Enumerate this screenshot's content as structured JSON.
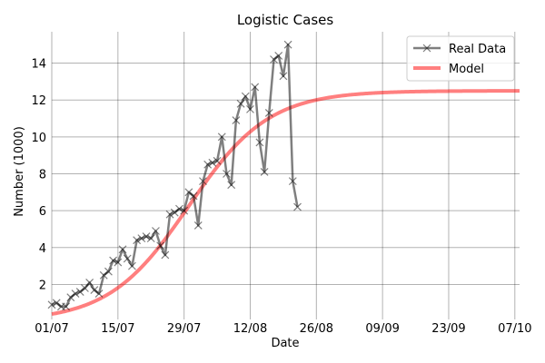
{
  "chart_data": {
    "type": "line",
    "title": "Logistic Cases",
    "xlabel": "Date",
    "ylabel": "Number (1000)",
    "x_tick_labels": [
      "01/07",
      "15/07",
      "29/07",
      "12/08",
      "26/08",
      "09/09",
      "23/09",
      "07/10"
    ],
    "x_tick_dates": [
      "2020-07-01",
      "2020-07-15",
      "2020-07-29",
      "2020-08-12",
      "2020-08-26",
      "2020-09-09",
      "2020-09-23",
      "2020-10-07"
    ],
    "xlim": [
      "2020-07-01",
      "2020-10-08"
    ],
    "y_ticks": [
      2,
      4,
      6,
      8,
      10,
      12,
      14
    ],
    "ylim": [
      0.3,
      15.7
    ],
    "grid": true,
    "legend_position": "top-right",
    "series": [
      {
        "name": "Real Data",
        "color": "#000000",
        "opacity": 0.5,
        "marker": "x",
        "points": [
          [
            "2020-07-01",
            0.9
          ],
          [
            "2020-07-02",
            1.0
          ],
          [
            "2020-07-03",
            0.8
          ],
          [
            "2020-07-04",
            0.8
          ],
          [
            "2020-07-05",
            1.3
          ],
          [
            "2020-07-06",
            1.5
          ],
          [
            "2020-07-07",
            1.6
          ],
          [
            "2020-07-08",
            1.8
          ],
          [
            "2020-07-09",
            2.1
          ],
          [
            "2020-07-10",
            1.7
          ],
          [
            "2020-07-11",
            1.5
          ],
          [
            "2020-07-12",
            2.5
          ],
          [
            "2020-07-13",
            2.7
          ],
          [
            "2020-07-14",
            3.3
          ],
          [
            "2020-07-15",
            3.2
          ],
          [
            "2020-07-16",
            3.9
          ],
          [
            "2020-07-17",
            3.4
          ],
          [
            "2020-07-18",
            3.0
          ],
          [
            "2020-07-19",
            4.4
          ],
          [
            "2020-07-20",
            4.5
          ],
          [
            "2020-07-21",
            4.6
          ],
          [
            "2020-07-22",
            4.5
          ],
          [
            "2020-07-23",
            4.9
          ],
          [
            "2020-07-24",
            4.1
          ],
          [
            "2020-07-25",
            3.6
          ],
          [
            "2020-07-26",
            5.8
          ],
          [
            "2020-07-27",
            5.9
          ],
          [
            "2020-07-28",
            6.1
          ],
          [
            "2020-07-29",
            6.0
          ],
          [
            "2020-07-30",
            7.0
          ],
          [
            "2020-07-31",
            6.8
          ],
          [
            "2020-08-01",
            5.2
          ],
          [
            "2020-08-02",
            7.6
          ],
          [
            "2020-08-03",
            8.5
          ],
          [
            "2020-08-04",
            8.6
          ],
          [
            "2020-08-05",
            8.7
          ],
          [
            "2020-08-06",
            10.0
          ],
          [
            "2020-08-07",
            8.0
          ],
          [
            "2020-08-08",
            7.4
          ],
          [
            "2020-08-09",
            10.9
          ],
          [
            "2020-08-10",
            11.8
          ],
          [
            "2020-08-11",
            12.2
          ],
          [
            "2020-08-12",
            11.5
          ],
          [
            "2020-08-13",
            12.7
          ],
          [
            "2020-08-14",
            9.7
          ],
          [
            "2020-08-15",
            8.1
          ],
          [
            "2020-08-16",
            11.3
          ],
          [
            "2020-08-17",
            14.2
          ],
          [
            "2020-08-18",
            14.4
          ],
          [
            "2020-08-19",
            13.3
          ],
          [
            "2020-08-20",
            15.0
          ],
          [
            "2020-08-21",
            7.6
          ],
          [
            "2020-08-22",
            6.2
          ]
        ]
      },
      {
        "name": "Model",
        "color": "#ff0000",
        "opacity": 0.5,
        "marker": "none",
        "model": {
          "type": "logistic",
          "L": 12.5,
          "k": 0.118,
          "t0": "2020-07-30"
        }
      }
    ]
  }
}
